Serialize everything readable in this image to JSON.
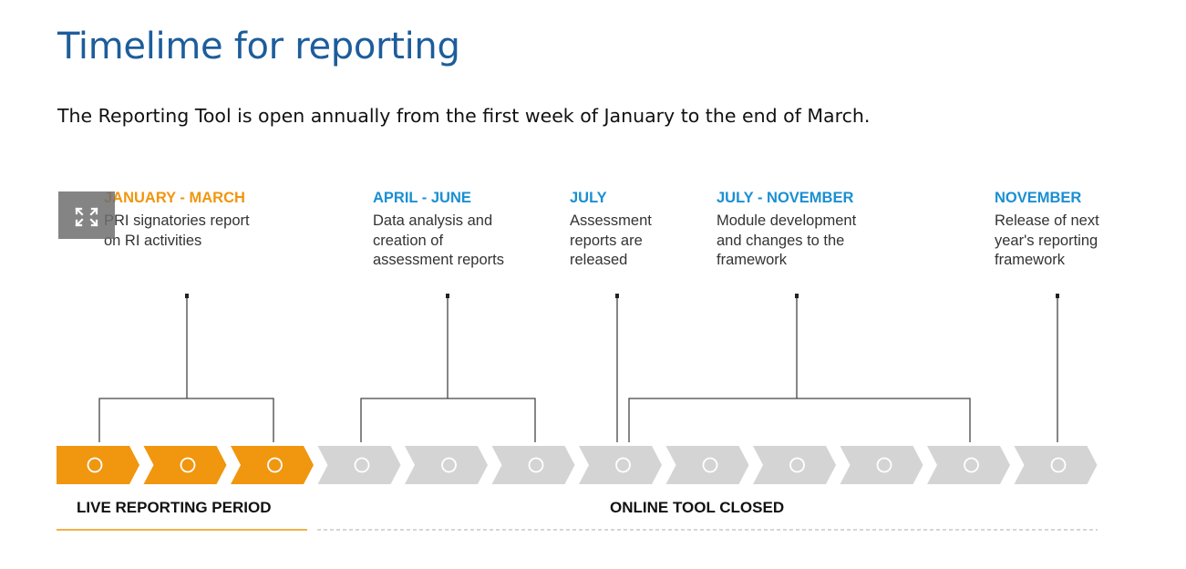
{
  "page": {
    "title": "Timelime for reporting",
    "intro": "The Reporting Tool is open annually from the first week of January to the end of March."
  },
  "colors": {
    "title": "#1d5d9b",
    "live_accent": "#f0960f",
    "closed_accent": "#1a8fd2",
    "chevron_live": "#f0960f",
    "chevron_closed": "#d4d4d4",
    "connector": "#444444"
  },
  "phases": [
    {
      "title": "JANUARY - MARCH",
      "lines": [
        "PRI signatories report",
        "on RI activities"
      ],
      "state": "live"
    },
    {
      "title": "APRIL - JUNE",
      "lines": [
        "Data analysis and",
        "creation of",
        "assessment reports"
      ],
      "state": "closed"
    },
    {
      "title": "JULY",
      "lines": [
        "Assessment",
        "reports are",
        "released"
      ],
      "state": "closed"
    },
    {
      "title": "JULY - NOVEMBER",
      "lines": [
        "Module development",
        "and changes to the",
        "framework"
      ],
      "state": "closed"
    },
    {
      "title": "NOVEMBER",
      "lines": [
        "Release of next",
        "year's reporting",
        "framework"
      ],
      "state": "closed"
    }
  ],
  "timeline": {
    "months": 12,
    "live_months": 3
  },
  "periods": {
    "live": "LIVE REPORTING PERIOD",
    "closed": "ONLINE TOOL CLOSED"
  },
  "controls": {
    "expand_icon": "expand-arrows-icon"
  }
}
